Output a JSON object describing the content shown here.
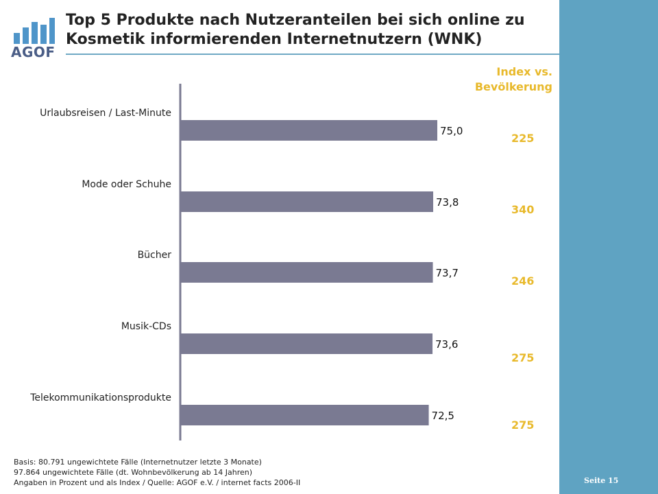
{
  "title": "Top 5 Produkte nach Nutzeranteilen bei sich online zu Kosmetik informierenden Internetnutzern (WNK)",
  "logo": {
    "text": "AGOF"
  },
  "index_header": [
    "Index vs.",
    "Bevölkerung"
  ],
  "footnotes": [
    "Basis: 80.791 ungewichtete Fälle (Internetnutzer letzte 3 Monate)",
    "97.864 ungewichtete Fälle (dt. Wohnbevölkerung ab 14 Jahren)",
    "Angaben in Prozent und als Index / Quelle: AGOF e.V. / internet facts 2006-II"
  ],
  "page_number": "Seite 15",
  "colors": {
    "bar": "#7a7a92",
    "index": "#e8b92b",
    "band": "#5fa3c2",
    "logo": "#4f95c9"
  },
  "chart_data": {
    "type": "bar",
    "orientation": "horizontal",
    "categories": [
      "Urlaubsreisen / Last-Minute",
      "Mode oder Schuhe",
      "Bücher",
      "Musik-CDs",
      "Telekommunikationsprodukte"
    ],
    "values": [
      75.0,
      73.8,
      73.7,
      73.6,
      72.5
    ],
    "value_labels": [
      "75,0",
      "73,8",
      "73,7",
      "73,6",
      "72,5"
    ],
    "index_values": [
      "225",
      "340",
      "246",
      "275",
      "275"
    ],
    "xlabel": "",
    "ylabel": "",
    "grid": false
  }
}
